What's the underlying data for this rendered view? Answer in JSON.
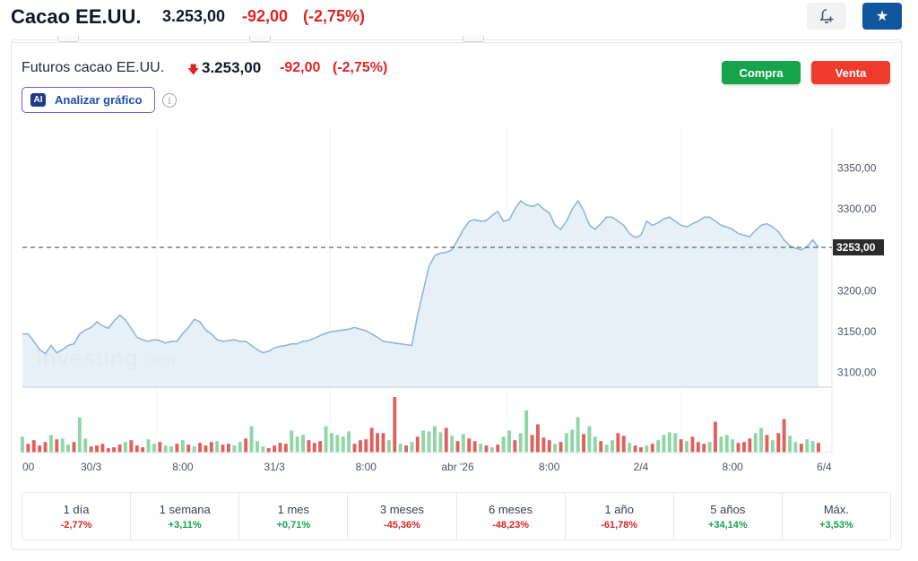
{
  "header": {
    "title": "Cacao EE.UU.",
    "price": "3.253,00",
    "change": "-92,00",
    "change_pct": "(-2,75%)"
  },
  "instrument": {
    "name": "Futuros cacao EE.UU.",
    "price": "3.253,00",
    "change": "-92,00",
    "change_pct": "(-2,75%)"
  },
  "buttons": {
    "buy": "Compra",
    "sell": "Venta",
    "ai_badge": "AI",
    "ai_label": "Analizar gráfico",
    "info": "i"
  },
  "watermark": {
    "brand": "investing",
    "suffix": ".com"
  },
  "colors": {
    "line": "#8fb6d9",
    "area": "#e3edf6",
    "up_volume": "#8fd6a6",
    "down_volume": "#e06060",
    "negative": "#dc2626",
    "positive": "#16a34a",
    "accent": "#1256a0"
  },
  "chart_data": {
    "type": "area",
    "y_ticks": [
      "3350,00",
      "3300,00",
      "3250,00",
      "3200,00",
      "3150,00",
      "3100,00"
    ],
    "y_tick_values": [
      3350,
      3300,
      3250,
      3200,
      3150,
      3100
    ],
    "ylim": [
      3082,
      3400
    ],
    "last_price_label": "3253,00",
    "last_price": 3253,
    "x_ticks": [
      {
        "label": "00",
        "index": 0
      },
      {
        "label": "30/3",
        "index": 12
      },
      {
        "label": "8:00",
        "index": 28
      },
      {
        "label": "31/3",
        "index": 44
      },
      {
        "label": "8:00",
        "index": 60
      },
      {
        "label": "abr '26",
        "index": 76
      },
      {
        "label": "8:00",
        "index": 92
      },
      {
        "label": "2/4",
        "index": 108
      },
      {
        "label": "8:00",
        "index": 124
      },
      {
        "label": "6/4",
        "index": 140
      }
    ],
    "price": [
      3147,
      3147,
      3138,
      3128,
      3123,
      3133,
      3124,
      3128,
      3133,
      3135,
      3147,
      3152,
      3155,
      3162,
      3157,
      3154,
      3163,
      3170,
      3164,
      3154,
      3143,
      3140,
      3138,
      3140,
      3139,
      3136,
      3138,
      3138,
      3148,
      3155,
      3165,
      3162,
      3152,
      3147,
      3140,
      3138,
      3139,
      3140,
      3138,
      3138,
      3133,
      3128,
      3124,
      3126,
      3130,
      3132,
      3133,
      3135,
      3135,
      3138,
      3139,
      3142,
      3145,
      3148,
      3150,
      3151,
      3152,
      3153,
      3155,
      3153,
      3151,
      3147,
      3143,
      3138,
      3137,
      3136,
      3135,
      3134,
      3133,
      3170,
      3200,
      3230,
      3243,
      3246,
      3247,
      3250,
      3262,
      3275,
      3285,
      3287,
      3285,
      3286,
      3292,
      3297,
      3285,
      3287,
      3300,
      3310,
      3305,
      3303,
      3306,
      3300,
      3295,
      3280,
      3275,
      3285,
      3300,
      3310,
      3298,
      3280,
      3275,
      3282,
      3290,
      3290,
      3285,
      3280,
      3270,
      3265,
      3268,
      3285,
      3280,
      3283,
      3288,
      3290,
      3285,
      3280,
      3278,
      3282,
      3285,
      3290,
      3290,
      3285,
      3280,
      3278,
      3275,
      3270,
      3268,
      3266,
      3274,
      3280,
      3282,
      3278,
      3272,
      3262,
      3255,
      3252,
      3250,
      3254,
      3262,
      3253
    ],
    "volume": [
      18,
      10,
      14,
      8,
      12,
      20,
      15,
      16,
      9,
      12,
      40,
      16,
      7,
      8,
      10,
      5,
      6,
      9,
      12,
      14,
      8,
      6,
      15,
      10,
      12,
      8,
      7,
      10,
      14,
      9,
      7,
      11,
      8,
      12,
      13,
      9,
      10,
      8,
      12,
      16,
      30,
      13,
      7,
      5,
      8,
      11,
      10,
      25,
      18,
      20,
      14,
      11,
      13,
      30,
      22,
      20,
      18,
      24,
      10,
      14,
      15,
      28,
      22,
      22,
      14,
      63,
      10,
      8,
      12,
      18,
      25,
      24,
      30,
      23,
      28,
      19,
      13,
      21,
      16,
      13,
      10,
      8,
      6,
      9,
      18,
      25,
      14,
      22,
      48,
      20,
      32,
      17,
      14,
      10,
      12,
      22,
      26,
      40,
      21,
      30,
      18,
      13,
      9,
      14,
      22,
      19,
      11,
      8,
      6,
      8,
      10,
      14,
      20,
      23,
      22,
      15,
      13,
      18,
      12,
      10,
      12,
      35,
      18,
      20,
      15,
      11,
      12,
      16,
      22,
      28,
      20,
      14,
      22,
      38,
      19,
      12,
      10,
      15,
      13,
      11
    ],
    "volume_up": [
      1,
      0,
      0,
      0,
      0,
      1,
      0,
      1,
      1,
      0,
      1,
      1,
      0,
      0,
      0,
      0,
      0,
      0,
      1,
      0,
      0,
      0,
      1,
      1,
      0,
      1,
      1,
      0,
      1,
      0,
      1,
      0,
      0,
      0,
      1,
      0,
      0,
      1,
      1,
      0,
      1,
      1,
      1,
      0,
      0,
      0,
      0,
      1,
      1,
      1,
      0,
      0,
      0,
      1,
      1,
      1,
      1,
      1,
      0,
      0,
      0,
      0,
      0,
      0,
      1,
      0,
      1,
      0,
      1,
      0,
      1,
      1,
      1,
      1,
      0,
      1,
      0,
      1,
      0,
      0,
      1,
      0,
      1,
      0,
      1,
      1,
      0,
      1,
      1,
      0,
      0,
      0,
      0,
      1,
      0,
      1,
      1,
      1,
      0,
      1,
      1,
      0,
      1,
      1,
      0,
      0,
      1,
      0,
      0,
      1,
      0,
      1,
      1,
      1,
      1,
      0,
      1,
      0,
      0,
      0,
      1,
      0,
      1,
      1,
      1,
      0,
      0,
      0,
      1,
      1,
      0,
      1,
      0,
      0,
      1,
      1,
      0,
      1,
      1,
      0
    ],
    "grid": false,
    "legend": "none"
  },
  "performance": [
    {
      "label": "1 día",
      "value": "-2,77%",
      "dir": "neg"
    },
    {
      "label": "1 semana",
      "value": "+3,11%",
      "dir": "pos"
    },
    {
      "label": "1 mes",
      "value": "+0,71%",
      "dir": "pos"
    },
    {
      "label": "3 meses",
      "value": "-45,36%",
      "dir": "neg"
    },
    {
      "label": "6 meses",
      "value": "-48,23%",
      "dir": "neg"
    },
    {
      "label": "1 año",
      "value": "-61,78%",
      "dir": "neg"
    },
    {
      "label": "5 años",
      "value": "+34,14%",
      "dir": "pos"
    },
    {
      "label": "Máx.",
      "value": "+3,53%",
      "dir": "pos"
    }
  ]
}
